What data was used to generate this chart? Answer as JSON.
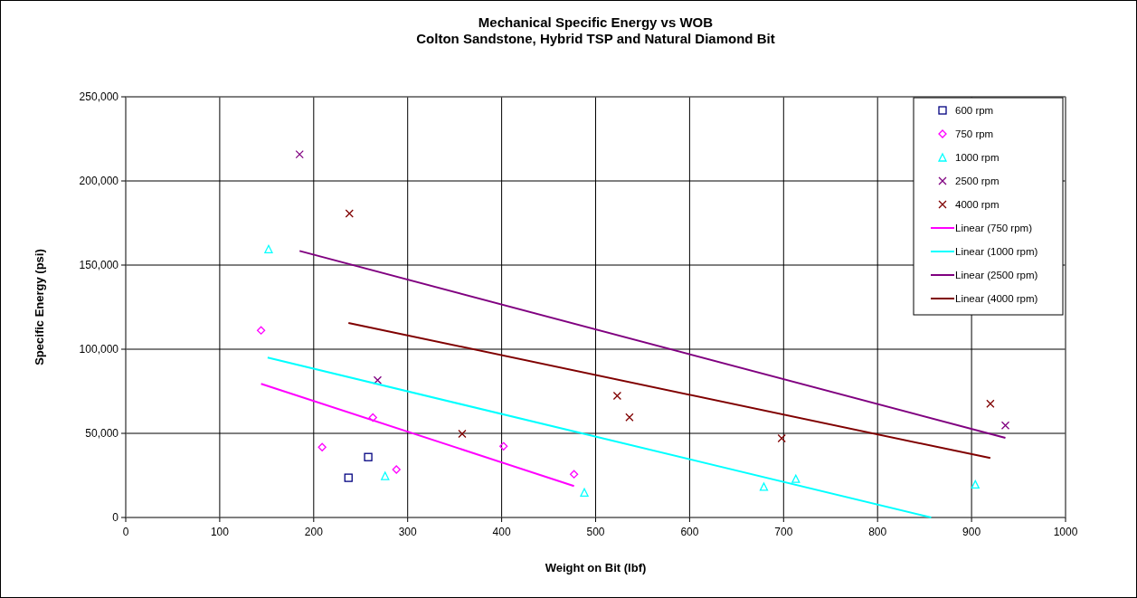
{
  "chart_data": {
    "type": "scatter",
    "title": "Mechanical Specific Energy vs WOB\nColton Sandstone, Hybrid TSP and Natural Diamond Bit",
    "xlabel": "Weight on Bit (lbf)",
    "ylabel": "Specific Energy (psi)",
    "xlim": [
      0,
      1000
    ],
    "xticks": [
      0,
      100,
      200,
      300,
      400,
      500,
      600,
      700,
      800,
      900,
      1000
    ],
    "ylim": [
      0,
      250000
    ],
    "yticks": [
      {
        "value": 0,
        "label": "0"
      },
      {
        "value": 50000,
        "label": "50,000"
      },
      {
        "value": 100000,
        "label": "100,000"
      },
      {
        "value": 150000,
        "label": "150,000"
      },
      {
        "value": 200000,
        "label": "200,000"
      },
      {
        "value": 250000,
        "label": "250,000"
      }
    ],
    "grid": true,
    "legend": "top right",
    "series": [
      {
        "name": "600 rpm",
        "marker": "square",
        "color": "#000080",
        "x": [
          237,
          258
        ],
        "values": [
          23600,
          35900
        ]
      },
      {
        "name": "750 rpm",
        "marker": "diamond",
        "color": "#ff00ff",
        "x": [
          144,
          209,
          263,
          288,
          402,
          477
        ],
        "values": [
          111200,
          41800,
          59400,
          28500,
          42300,
          25700
        ]
      },
      {
        "name": "1000 rpm",
        "marker": "triangle",
        "color": "#00ffff",
        "x": [
          152,
          276,
          488,
          679,
          713,
          904
        ],
        "values": [
          159500,
          24700,
          14900,
          18300,
          23000,
          19700
        ]
      },
      {
        "name": "2500 rpm",
        "marker": "cross",
        "color": "#800080",
        "x": [
          185,
          268,
          936
        ],
        "values": [
          215800,
          81600,
          54700
        ]
      },
      {
        "name": "4000 rpm",
        "marker": "cross",
        "color": "#800000",
        "x": [
          238,
          358,
          523,
          536,
          698,
          920
        ],
        "values": [
          180600,
          49700,
          72300,
          59500,
          47000,
          67600
        ]
      },
      {
        "name": "Linear (750 rpm)",
        "type": "line",
        "marker": "none",
        "color": "#ff00ff",
        "x": [
          144,
          477
        ],
        "values": [
          79400,
          18700
        ]
      },
      {
        "name": "Linear (1000 rpm)",
        "type": "line",
        "marker": "none",
        "color": "#00ffff",
        "x": [
          151,
          857
        ],
        "values": [
          95000,
          0
        ]
      },
      {
        "name": "Linear (2500 rpm)",
        "type": "line",
        "marker": "none",
        "color": "#800080",
        "x": [
          185,
          936
        ],
        "values": [
          158400,
          47300
        ]
      },
      {
        "name": "Linear (4000 rpm)",
        "type": "line",
        "marker": "none",
        "color": "#800000",
        "x": [
          237,
          920
        ],
        "values": [
          115600,
          35300
        ]
      }
    ]
  }
}
